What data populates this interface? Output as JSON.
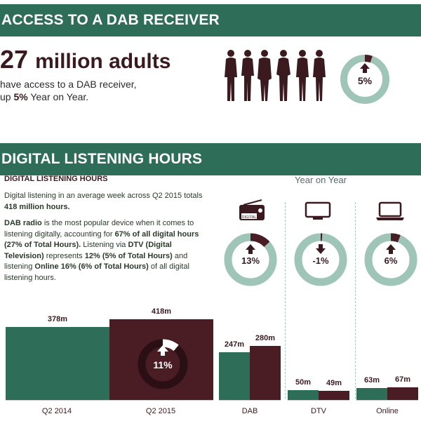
{
  "section1": {
    "title": "ACCESS TO A DAB RECEIVER",
    "big_number": "27",
    "big_unit": "million adults",
    "desc_line1": "have access to a DAB receiver,",
    "desc_line2_pre": "up ",
    "desc_line2_bold": "5%",
    "desc_line2_post": " Year on Year.",
    "change": "5%",
    "change_fraction": 0.05,
    "people_icon": "people-silhouettes-icon"
  },
  "section2": {
    "title": "DIGITAL LISTENING HOURS",
    "subheading": "DIGITAL LISTENING HOURS",
    "p1_line1": "Digital listening in an average week across  Q2 2015 totals",
    "p1_line2": "418 million hours.",
    "p2_bold": "DAB radio",
    "p2_line1_post": " is  the most popular device when it comes to",
    "p2_line2_pre": "listening digitally, accounting for ",
    "p2_line2_bold": "67% of all digital hours",
    "p2_line3": "(27% of Total Hours).",
    "p2_line3_post": " Listening via ",
    "p2_line3_bold2": "DTV (Digital",
    "p2_line4_bold": "Television)",
    "p2_line4_post": " represents ",
    "p2_line4_bold2": "12% (5% of Total Hours)",
    "p2_line4_post2": " and",
    "p2_line5_pre": "listening ",
    "p2_line5_bold": "Online 16% (6% of Total Hours)",
    "p2_line5_post": " of all digital",
    "p2_line6": "listening hours.",
    "yoy_label": "Year on Year",
    "devices": [
      {
        "name": "DAB",
        "icon": "radio-icon",
        "icon_label": "DIGITAL",
        "change": "13%",
        "direction": "up",
        "change_fraction": 0.13
      },
      {
        "name": "DTV",
        "icon": "tv-icon",
        "change": "-1%",
        "direction": "down",
        "change_fraction": 0.01
      },
      {
        "name": "Online",
        "icon": "laptop-icon",
        "change": "6%",
        "direction": "up",
        "change_fraction": 0.06
      }
    ],
    "total_change": "11%",
    "total_change_fraction": 0.11
  },
  "chart_data": {
    "type": "bar",
    "categories": [
      "Q2 2014",
      "Q2 2015"
    ],
    "values": [
      378,
      418
    ],
    "value_labels": [
      "378m",
      "418m"
    ],
    "device_groups": [
      {
        "category": "DAB",
        "values": [
          247,
          280
        ],
        "labels": [
          "247m",
          "280m"
        ]
      },
      {
        "category": "DTV",
        "values": [
          50,
          49
        ],
        "labels": [
          "50m",
          "49m"
        ]
      },
      {
        "category": "Online",
        "values": [
          63,
          67
        ],
        "labels": [
          "63m",
          "67m"
        ]
      }
    ],
    "series_colors": {
      "2014": "#2e6e59",
      "2015": "#4a1c24"
    },
    "ylim": [
      0,
      418
    ]
  },
  "colors": {
    "banner": "#2e6e59",
    "maroon": "#4a1c24",
    "teal": "#9fc4b8",
    "dark_text": "#3a1a1f"
  }
}
